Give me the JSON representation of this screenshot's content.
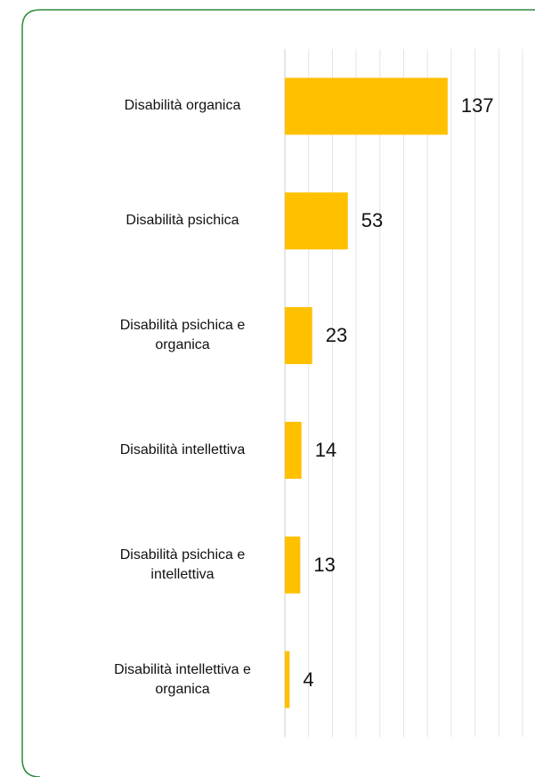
{
  "chart_data": {
    "type": "bar",
    "orientation": "horizontal",
    "categories": [
      "Disabilità organica",
      "Disabilità psichica",
      "Disabilità psichica e organica",
      "Disabilità intellettiva",
      "Disabilità psichica e intellettiva",
      "Disabilità intellettiva e organica"
    ],
    "values": [
      137,
      53,
      23,
      14,
      13,
      4
    ],
    "color": "#ffc000",
    "xlim": [
      0,
      200
    ],
    "xticks": [
      0,
      20,
      40,
      60,
      80,
      100,
      120,
      140,
      160,
      180,
      200
    ],
    "grid": true
  }
}
